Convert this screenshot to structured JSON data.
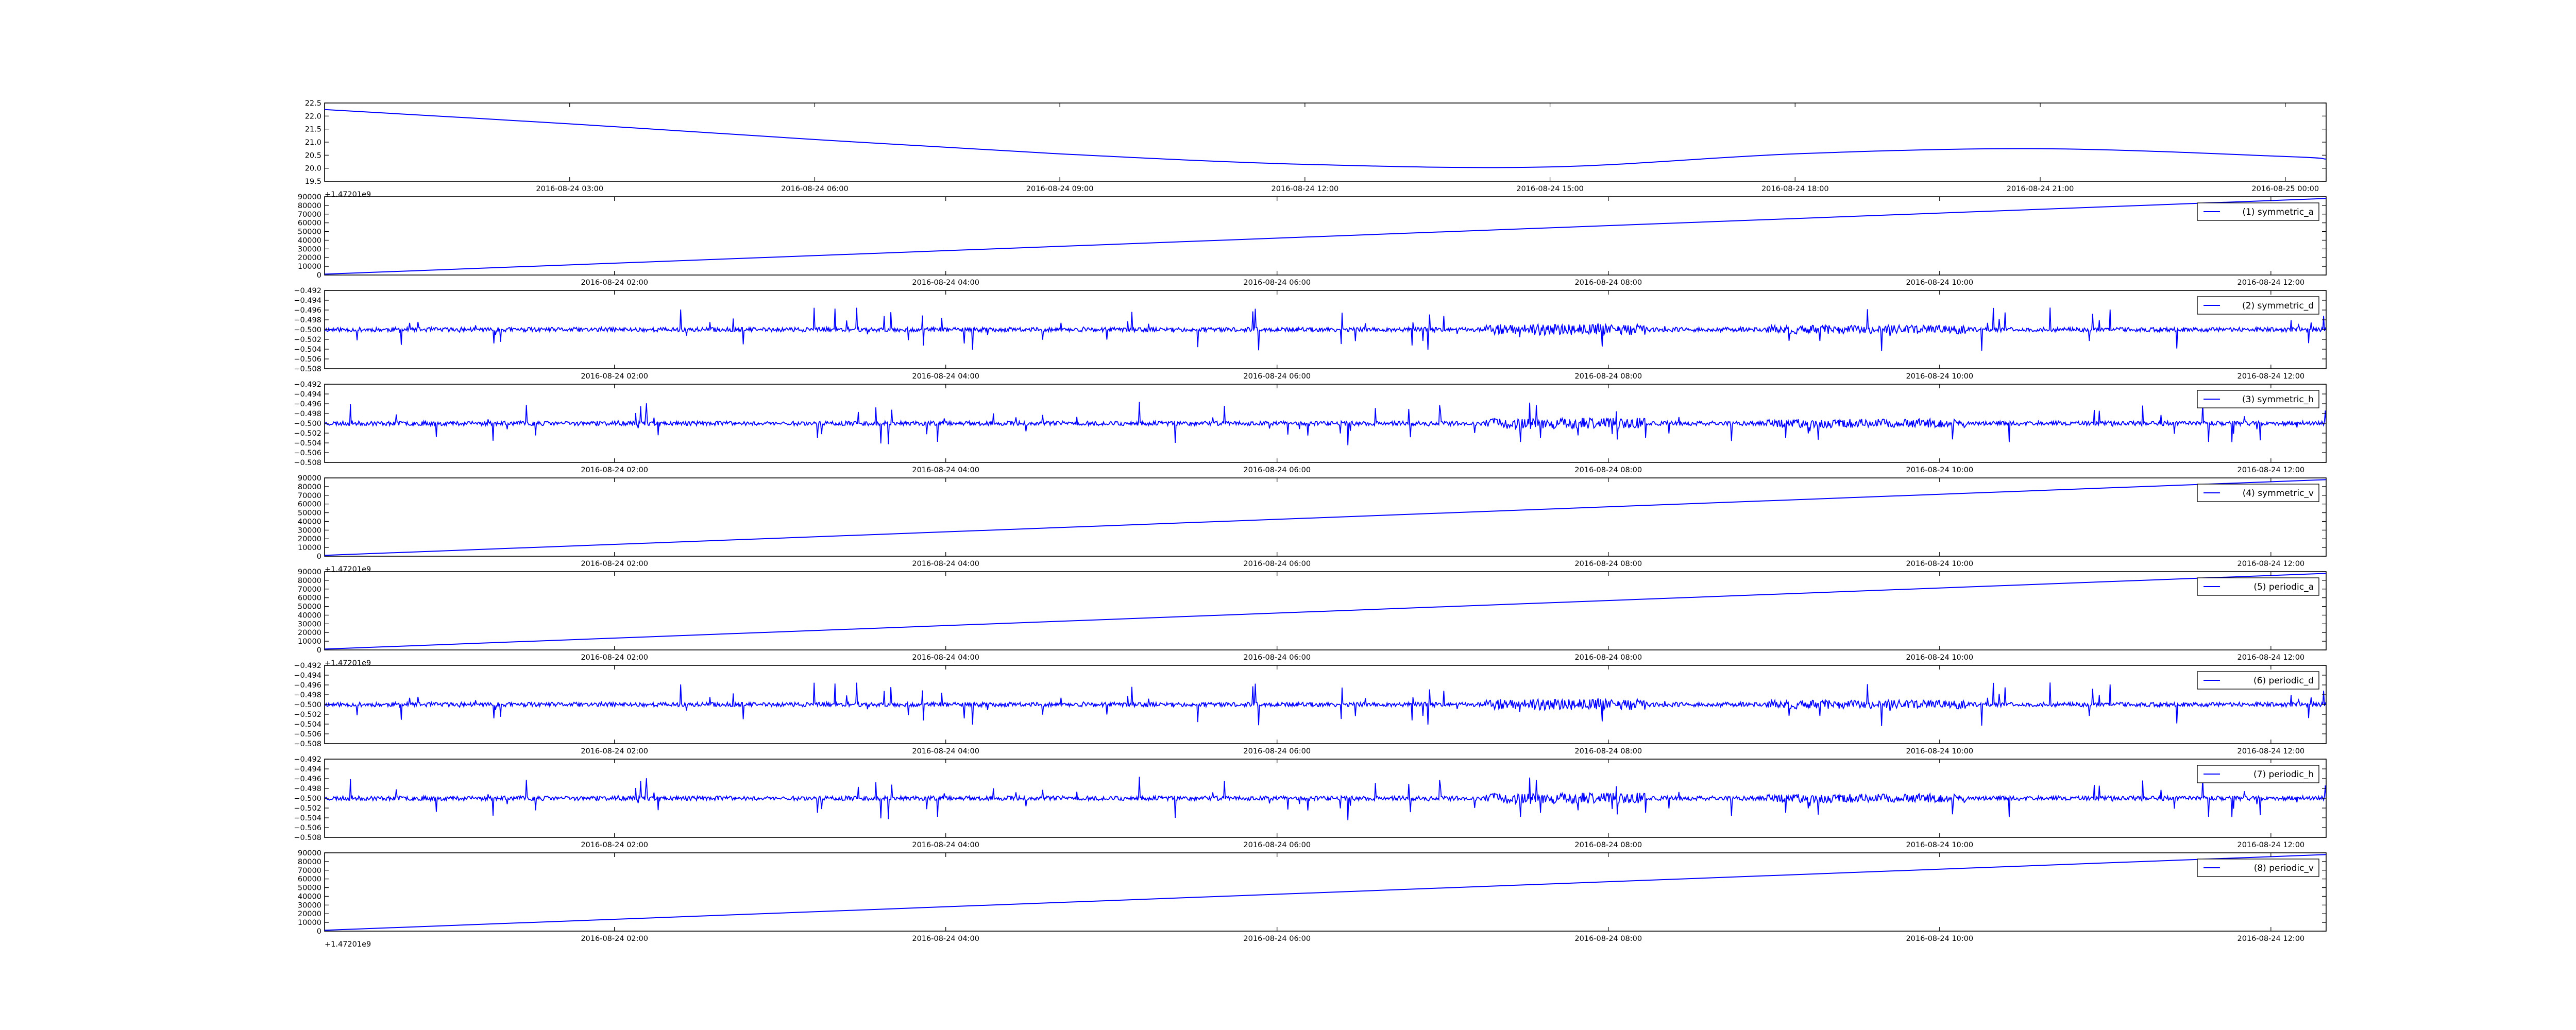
{
  "chart_data": [
    {
      "type": "line",
      "panel": 0,
      "color": "#0000ff",
      "x_ticks": [
        "2016-08-24 03:00",
        "2016-08-24 06:00",
        "2016-08-24 09:00",
        "2016-08-24 12:00",
        "2016-08-24 15:00",
        "2016-08-24 18:00",
        "2016-08-24 21:00",
        "2016-08-25 00:00"
      ],
      "x_range": [
        "2016-08-24 00:00",
        "2016-08-25 00:30"
      ],
      "y_ticks": [
        "22.5",
        "22.0",
        "21.5",
        "21.0",
        "20.5",
        "20.0",
        "19.5"
      ],
      "ylim": [
        19.5,
        22.5
      ],
      "offset_label": "+1.47201e9",
      "legend": "",
      "signal": "smooth",
      "x": [
        "2016-08-24 00:00",
        "2016-08-24 03:00",
        "2016-08-24 06:00",
        "2016-08-24 09:00",
        "2016-08-24 12:00",
        "2016-08-24 15:00",
        "2016-08-24 18:00",
        "2016-08-24 21:00",
        "2016-08-25 00:00",
        "2016-08-25 00:30"
      ],
      "y": [
        22.25,
        21.7,
        21.1,
        20.55,
        20.15,
        20.05,
        20.55,
        20.75,
        20.45,
        20.35
      ]
    },
    {
      "type": "line",
      "panel": 1,
      "color": "#0000ff",
      "x_ticks": [
        "2016-08-24 02:00",
        "2016-08-24 04:00",
        "2016-08-24 06:00",
        "2016-08-24 08:00",
        "2016-08-24 10:00",
        "2016-08-24 12:00"
      ],
      "x_range": [
        "2016-08-24 00:15",
        "2016-08-24 12:20"
      ],
      "y_ticks": [
        "90000",
        "80000",
        "70000",
        "60000",
        "50000",
        "40000",
        "30000",
        "20000",
        "10000",
        "0"
      ],
      "ylim": [
        0,
        90000
      ],
      "offset_label": "",
      "legend": "(1) symmetric_a",
      "signal": "linear",
      "x": [
        "2016-08-24 00:15",
        "2016-08-24 12:20"
      ],
      "y": [
        1000,
        88000
      ]
    },
    {
      "type": "line",
      "panel": 2,
      "color": "#0000ff",
      "x_ticks": [
        "2016-08-24 02:00",
        "2016-08-24 04:00",
        "2016-08-24 06:00",
        "2016-08-24 08:00",
        "2016-08-24 10:00",
        "2016-08-24 12:00"
      ],
      "x_range": [
        "2016-08-24 00:15",
        "2016-08-24 12:20"
      ],
      "y_ticks": [
        "−0.492",
        "−0.494",
        "−0.496",
        "−0.498",
        "−0.500",
        "−0.502",
        "−0.504",
        "−0.506",
        "−0.508"
      ],
      "ylim": [
        -0.508,
        -0.492
      ],
      "offset_label": "",
      "legend": "(2) symmetric_d",
      "signal": "noise",
      "seed": 11,
      "x": [
        "2016-08-24 00:15",
        "2016-08-24 12:20"
      ],
      "y": [
        -0.5,
        -0.5
      ]
    },
    {
      "type": "line",
      "panel": 3,
      "color": "#0000ff",
      "x_ticks": [
        "2016-08-24 02:00",
        "2016-08-24 04:00",
        "2016-08-24 06:00",
        "2016-08-24 08:00",
        "2016-08-24 10:00",
        "2016-08-24 12:00"
      ],
      "x_range": [
        "2016-08-24 00:15",
        "2016-08-24 12:20"
      ],
      "y_ticks": [
        "−0.492",
        "−0.494",
        "−0.496",
        "−0.498",
        "−0.500",
        "−0.502",
        "−0.504",
        "−0.506",
        "−0.508"
      ],
      "ylim": [
        -0.508,
        -0.492
      ],
      "offset_label": "",
      "legend": "(3) symmetric_h",
      "signal": "noise",
      "seed": 23,
      "x": [
        "2016-08-24 00:15",
        "2016-08-24 12:20"
      ],
      "y": [
        -0.5,
        -0.5
      ]
    },
    {
      "type": "line",
      "panel": 4,
      "color": "#0000ff",
      "x_ticks": [
        "2016-08-24 02:00",
        "2016-08-24 04:00",
        "2016-08-24 06:00",
        "2016-08-24 08:00",
        "2016-08-24 10:00",
        "2016-08-24 12:00"
      ],
      "x_range": [
        "2016-08-24 00:15",
        "2016-08-24 12:20"
      ],
      "y_ticks": [
        "90000",
        "80000",
        "70000",
        "60000",
        "50000",
        "40000",
        "30000",
        "20000",
        "10000",
        "0"
      ],
      "ylim": [
        0,
        90000
      ],
      "offset_label": "+1.47201e9",
      "legend": "(4) symmetric_v",
      "signal": "linear",
      "x": [
        "2016-08-24 00:15",
        "2016-08-24 12:20"
      ],
      "y": [
        1000,
        88000
      ]
    },
    {
      "type": "line",
      "panel": 5,
      "color": "#0000ff",
      "x_ticks": [
        "2016-08-24 02:00",
        "2016-08-24 04:00",
        "2016-08-24 06:00",
        "2016-08-24 08:00",
        "2016-08-24 10:00",
        "2016-08-24 12:00"
      ],
      "x_range": [
        "2016-08-24 00:15",
        "2016-08-24 12:20"
      ],
      "y_ticks": [
        "90000",
        "80000",
        "70000",
        "60000",
        "50000",
        "40000",
        "30000",
        "20000",
        "10000",
        "0"
      ],
      "ylim": [
        0,
        90000
      ],
      "offset_label": "+1.47201e9",
      "legend": "(5) periodic_a",
      "signal": "linear",
      "x": [
        "2016-08-24 00:15",
        "2016-08-24 12:20"
      ],
      "y": [
        1000,
        88000
      ]
    },
    {
      "type": "line",
      "panel": 6,
      "color": "#0000ff",
      "x_ticks": [
        "2016-08-24 02:00",
        "2016-08-24 04:00",
        "2016-08-24 06:00",
        "2016-08-24 08:00",
        "2016-08-24 10:00",
        "2016-08-24 12:00"
      ],
      "x_range": [
        "2016-08-24 00:15",
        "2016-08-24 12:20"
      ],
      "y_ticks": [
        "−0.492",
        "−0.494",
        "−0.496",
        "−0.498",
        "−0.500",
        "−0.502",
        "−0.504",
        "−0.506",
        "−0.508"
      ],
      "ylim": [
        -0.508,
        -0.492
      ],
      "offset_label": "",
      "legend": "(6) periodic_d",
      "signal": "noise",
      "seed": 11,
      "x": [
        "2016-08-24 00:15",
        "2016-08-24 12:20"
      ],
      "y": [
        -0.5,
        -0.5
      ]
    },
    {
      "type": "line",
      "panel": 7,
      "color": "#0000ff",
      "x_ticks": [
        "2016-08-24 02:00",
        "2016-08-24 04:00",
        "2016-08-24 06:00",
        "2016-08-24 08:00",
        "2016-08-24 10:00",
        "2016-08-24 12:00"
      ],
      "x_range": [
        "2016-08-24 00:15",
        "2016-08-24 12:20"
      ],
      "y_ticks": [
        "−0.492",
        "−0.494",
        "−0.496",
        "−0.498",
        "−0.500",
        "−0.502",
        "−0.504",
        "−0.506",
        "−0.508"
      ],
      "ylim": [
        -0.508,
        -0.492
      ],
      "offset_label": "",
      "legend": "(7) periodic_h",
      "signal": "noise",
      "seed": 23,
      "x": [
        "2016-08-24 00:15",
        "2016-08-24 12:20"
      ],
      "y": [
        -0.5,
        -0.5
      ]
    },
    {
      "type": "line",
      "panel": 8,
      "color": "#0000ff",
      "x_ticks": [
        "2016-08-24 02:00",
        "2016-08-24 04:00",
        "2016-08-24 06:00",
        "2016-08-24 08:00",
        "2016-08-24 10:00",
        "2016-08-24 12:00"
      ],
      "x_range": [
        "2016-08-24 00:15",
        "2016-08-24 12:20"
      ],
      "y_ticks": [
        "90000",
        "80000",
        "70000",
        "60000",
        "50000",
        "40000",
        "30000",
        "20000",
        "10000",
        "0"
      ],
      "ylim": [
        0,
        90000
      ],
      "offset_label": "+1.47201e9",
      "legend": "(8) periodic_v",
      "signal": "linear",
      "x": [
        "2016-08-24 00:15",
        "2016-08-24 12:20"
      ],
      "y": [
        1000,
        88000
      ]
    }
  ]
}
